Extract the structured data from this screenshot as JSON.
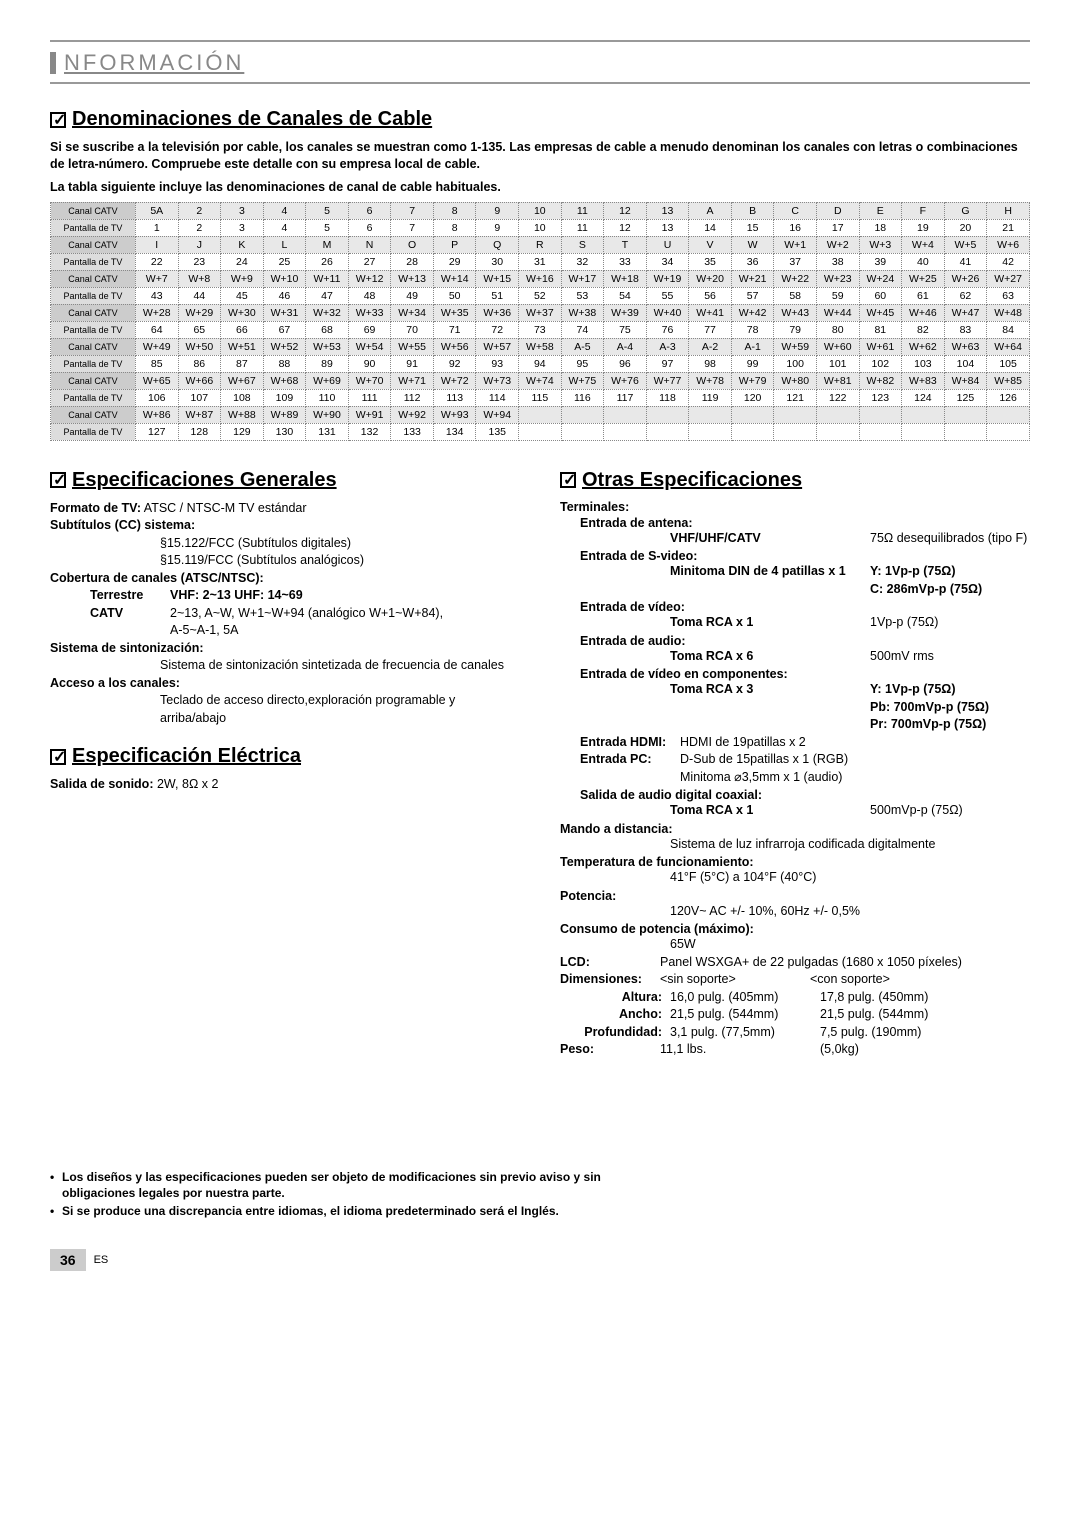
{
  "header": {
    "section": "NFORMACIÓN"
  },
  "h1": {
    "cable": "Denominaciones de Canales de Cable",
    "general": "Especificaciones Generales",
    "elec": "Especificación Eléctrica",
    "other": "Otras Especificaciones"
  },
  "intro": {
    "p1": "Si se suscribe a la televisión por cable, los canales se muestran como 1-135. Las empresas de cable a menudo denominan los canales con letras o combinaciones de letra-número. Compruebe este detalle con su empresa local de cable.",
    "p2": "La tabla siguiente incluye las denominaciones de canal de cable habituales."
  },
  "rowLabels": {
    "catv": "Canal CATV",
    "tv": "Pantalla de TV"
  },
  "table": [
    [
      "5A",
      "2",
      "3",
      "4",
      "5",
      "6",
      "7",
      "8",
      "9",
      "10",
      "11",
      "12",
      "13",
      "A",
      "B",
      "C",
      "D",
      "E",
      "F",
      "G",
      "H"
    ],
    [
      "1",
      "2",
      "3",
      "4",
      "5",
      "6",
      "7",
      "8",
      "9",
      "10",
      "11",
      "12",
      "13",
      "14",
      "15",
      "16",
      "17",
      "18",
      "19",
      "20",
      "21"
    ],
    [
      "I",
      "J",
      "K",
      "L",
      "M",
      "N",
      "O",
      "P",
      "Q",
      "R",
      "S",
      "T",
      "U",
      "V",
      "W",
      "W+1",
      "W+2",
      "W+3",
      "W+4",
      "W+5",
      "W+6"
    ],
    [
      "22",
      "23",
      "24",
      "25",
      "26",
      "27",
      "28",
      "29",
      "30",
      "31",
      "32",
      "33",
      "34",
      "35",
      "36",
      "37",
      "38",
      "39",
      "40",
      "41",
      "42"
    ],
    [
      "W+7",
      "W+8",
      "W+9",
      "W+10",
      "W+11",
      "W+12",
      "W+13",
      "W+14",
      "W+15",
      "W+16",
      "W+17",
      "W+18",
      "W+19",
      "W+20",
      "W+21",
      "W+22",
      "W+23",
      "W+24",
      "W+25",
      "W+26",
      "W+27"
    ],
    [
      "43",
      "44",
      "45",
      "46",
      "47",
      "48",
      "49",
      "50",
      "51",
      "52",
      "53",
      "54",
      "55",
      "56",
      "57",
      "58",
      "59",
      "60",
      "61",
      "62",
      "63"
    ],
    [
      "W+28",
      "W+29",
      "W+30",
      "W+31",
      "W+32",
      "W+33",
      "W+34",
      "W+35",
      "W+36",
      "W+37",
      "W+38",
      "W+39",
      "W+40",
      "W+41",
      "W+42",
      "W+43",
      "W+44",
      "W+45",
      "W+46",
      "W+47",
      "W+48"
    ],
    [
      "64",
      "65",
      "66",
      "67",
      "68",
      "69",
      "70",
      "71",
      "72",
      "73",
      "74",
      "75",
      "76",
      "77",
      "78",
      "79",
      "80",
      "81",
      "82",
      "83",
      "84"
    ],
    [
      "W+49",
      "W+50",
      "W+51",
      "W+52",
      "W+53",
      "W+54",
      "W+55",
      "W+56",
      "W+57",
      "W+58",
      "A-5",
      "A-4",
      "A-3",
      "A-2",
      "A-1",
      "W+59",
      "W+60",
      "W+61",
      "W+62",
      "W+63",
      "W+64"
    ],
    [
      "85",
      "86",
      "87",
      "88",
      "89",
      "90",
      "91",
      "92",
      "93",
      "94",
      "95",
      "96",
      "97",
      "98",
      "99",
      "100",
      "101",
      "102",
      "103",
      "104",
      "105"
    ],
    [
      "W+65",
      "W+66",
      "W+67",
      "W+68",
      "W+69",
      "W+70",
      "W+71",
      "W+72",
      "W+73",
      "W+74",
      "W+75",
      "W+76",
      "W+77",
      "W+78",
      "W+79",
      "W+80",
      "W+81",
      "W+82",
      "W+83",
      "W+84",
      "W+85"
    ],
    [
      "106",
      "107",
      "108",
      "109",
      "110",
      "111",
      "112",
      "113",
      "114",
      "115",
      "116",
      "117",
      "118",
      "119",
      "120",
      "121",
      "122",
      "123",
      "124",
      "125",
      "126"
    ],
    [
      "W+86",
      "W+87",
      "W+88",
      "W+89",
      "W+90",
      "W+91",
      "W+92",
      "W+93",
      "W+94",
      "",
      "",
      "",
      "",
      "",
      "",
      "",
      "",
      "",
      "",
      "",
      ""
    ],
    [
      "127",
      "128",
      "129",
      "130",
      "131",
      "132",
      "133",
      "134",
      "135",
      "",
      "",
      "",
      "",
      "",
      "",
      "",
      "",
      "",
      "",
      "",
      ""
    ]
  ],
  "general": {
    "tvformat_k": "Formato de TV:",
    "tvformat_v": "ATSC / NTSC-M TV estándar",
    "cc_k": "Subtítulos (CC) sistema:",
    "cc_v1": "§15.122/FCC (Subtítulos digitales)",
    "cc_v2": "§15.119/FCC (Subtítulos analógicos)",
    "cov_k": "Cobertura de canales (ATSC/NTSC):",
    "terr_k": "Terrestre",
    "terr_v": "VHF:  2~13    UHF:  14~69",
    "catv_k": "CATV",
    "catv_v1": "2~13, A~W, W+1~W+94 (analógico W+1~W+84),",
    "catv_v2": "A-5~A-1, 5A",
    "tune_k": "Sistema de sintonización:",
    "tune_v": "Sistema de sintonización sintetizada de frecuencia de canales",
    "acc_k": "Acceso a los canales:",
    "acc_v": "Teclado de acceso directo,exploración programable y arriba/abajo"
  },
  "elec": {
    "sound_k": "Salida de sonido:",
    "sound_v": "2W, 8Ω x 2"
  },
  "other": {
    "terminals": "Terminales:",
    "ant_k": "Entrada de antena:",
    "ant_l": "VHF/UHF/CATV",
    "ant_v": "75Ω desequilibrados (tipo F)",
    "sv_k": "Entrada de S-video:",
    "sv_l": "Minitoma DIN de 4 patillas x 1",
    "sv_v1": "Y: 1Vp-p (75Ω)",
    "sv_v2": "C: 286mVp-p (75Ω)",
    "vi_k": "Entrada de vídeo:",
    "vi_l": "Toma RCA x 1",
    "vi_v": "1Vp-p (75Ω)",
    "ai_k": "Entrada de audio:",
    "ai_l": "Toma RCA x 6",
    "ai_v": "500mV rms",
    "cv_k": "Entrada de vídeo en componentes:",
    "cv_l": "Toma RCA x 3",
    "cv_v1": "Y:   1Vp-p (75Ω)",
    "cv_v2": "Pb: 700mVp-p (75Ω)",
    "cv_v3": "Pr:  700mVp-p (75Ω)",
    "hdmi_k": "Entrada HDMI:",
    "hdmi_v": "HDMI de 19patillas x 2",
    "pc_k": "Entrada PC:",
    "pc_v1": "D-Sub de 15patillas x 1 (RGB)",
    "pc_v2": "Minitoma ⌀3,5mm x 1 (audio)",
    "coax_k": "Salida de audio digital coaxial:",
    "coax_l": "Toma RCA x 1",
    "coax_v": "500mVp-p (75Ω)",
    "remote_k": "Mando a distancia:",
    "remote_v": "Sistema de luz infrarroja codificada digitalmente",
    "temp_k": "Temperatura de funcionamiento:",
    "temp_v": "41°F (5°C) a 104°F (40°C)",
    "power_k": "Potencia:",
    "power_v": "120V~ AC +/- 10%, 60Hz +/- 0,5%",
    "cons_k": "Consumo de potencia (máximo):",
    "cons_v": "65W",
    "lcd_k": "LCD:",
    "lcd_v": "Panel WSXGA+ de 22 pulgadas (1680 x 1050 píxeles)",
    "dim_k": "Dimensiones:",
    "dim_h1": "<sin soporte>",
    "dim_h2": "<con soporte>",
    "alt_k": "Altura:",
    "alt_v1": "16,0 pulg.  (405mm)",
    "alt_v2": "17,8 pulg.  (450mm)",
    "anc_k": "Ancho:",
    "anc_v1": "21,5 pulg.  (544mm)",
    "anc_v2": "21,5 pulg.  (544mm)",
    "pro_k": "Profundidad:",
    "pro_v1": "3,1 pulg.  (77,5mm)",
    "pro_v2": "7,5 pulg.  (190mm)",
    "peso_k": "Peso:",
    "peso_v1": "11,1 lbs.",
    "peso_v2": "(5,0kg)"
  },
  "notes": {
    "n1": "Los diseños y las especificaciones pueden ser objeto de modificaciones sin previo aviso y sin obligaciones legales por nuestra parte.",
    "n2": "Si se produce una discrepancia entre idiomas, el idioma predeterminado será el Inglés."
  },
  "footer": {
    "page": "36",
    "lang": "ES"
  }
}
